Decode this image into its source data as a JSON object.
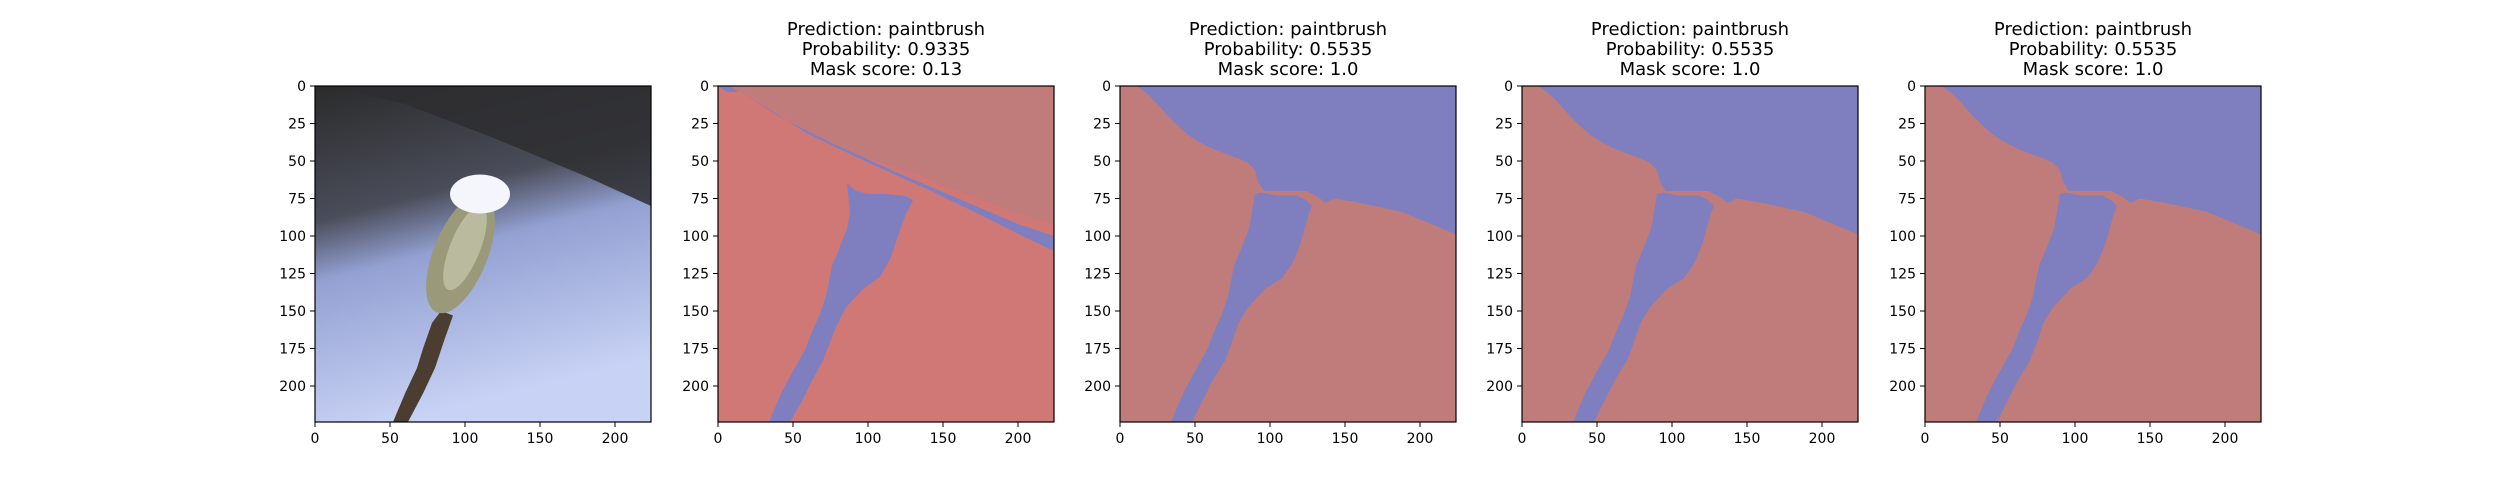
{
  "colors": {
    "background_class": "#7f7fc0",
    "object_class_highlight": "#d07876",
    "object_class_muted": "#bf7c7a",
    "sky_top": "#2b2b2b",
    "sky_bottom": "#c8d2f5"
  },
  "chart_data": [
    {
      "type": "image",
      "panel": "input-image",
      "title": [
        "",
        "",
        ""
      ],
      "xlim": [
        0,
        224
      ],
      "ylim": [
        224,
        0
      ],
      "xticks": [
        0,
        50,
        100,
        150,
        200
      ],
      "yticks": [
        0,
        25,
        50,
        75,
        100,
        125,
        150,
        175,
        200
      ]
    },
    {
      "type": "heatmap",
      "panel": "mask-1",
      "title": [
        "Prediction: paintbrush",
        "Probability: 0.9335",
        "Mask score: 0.13"
      ],
      "xlim": [
        0,
        224
      ],
      "ylim": [
        224,
        0
      ],
      "xticks": [
        0,
        50,
        100,
        150,
        200
      ],
      "yticks": [
        0,
        25,
        50,
        75,
        100,
        125,
        150,
        175,
        200
      ],
      "prediction": "paintbrush",
      "probability": 0.9335,
      "mask_score": 0.13
    },
    {
      "type": "heatmap",
      "panel": "mask-2",
      "title": [
        "Prediction: paintbrush",
        "Probability: 0.5535",
        "Mask score: 1.0"
      ],
      "xlim": [
        0,
        224
      ],
      "ylim": [
        224,
        0
      ],
      "xticks": [
        0,
        50,
        100,
        150,
        200
      ],
      "yticks": [
        0,
        25,
        50,
        75,
        100,
        125,
        150,
        175,
        200
      ],
      "prediction": "paintbrush",
      "probability": 0.5535,
      "mask_score": 1.0
    },
    {
      "type": "heatmap",
      "panel": "mask-3",
      "title": [
        "Prediction: paintbrush",
        "Probability: 0.5535",
        "Mask score: 1.0"
      ],
      "xlim": [
        0,
        224
      ],
      "ylim": [
        224,
        0
      ],
      "xticks": [
        0,
        50,
        100,
        150,
        200
      ],
      "yticks": [
        0,
        25,
        50,
        75,
        100,
        125,
        150,
        175,
        200
      ],
      "prediction": "paintbrush",
      "probability": 0.5535,
      "mask_score": 1.0
    },
    {
      "type": "heatmap",
      "panel": "mask-4",
      "title": [
        "Prediction: paintbrush",
        "Probability: 0.5535",
        "Mask score: 1.0"
      ],
      "xlim": [
        0,
        224
      ],
      "ylim": [
        224,
        0
      ],
      "xticks": [
        0,
        50,
        100,
        150,
        200
      ],
      "yticks": [
        0,
        25,
        50,
        75,
        100,
        125,
        150,
        175,
        200
      ],
      "prediction": "paintbrush",
      "probability": 0.5535,
      "mask_score": 1.0
    }
  ]
}
